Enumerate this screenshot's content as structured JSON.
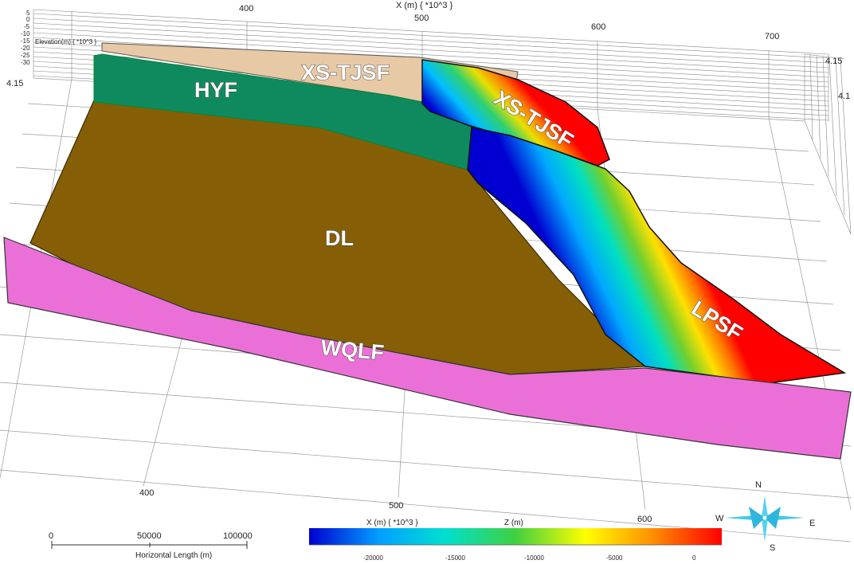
{
  "top_axis": {
    "title": "X (m) { *10^3 }",
    "ticks": [
      "400",
      "500",
      "600",
      "700"
    ]
  },
  "bottom_axis": {
    "ticks": [
      "400",
      "500",
      "600"
    ]
  },
  "elevation_axis": {
    "title": "Elevation(m) { *10^3 }",
    "ticks": [
      "5",
      "0",
      "-5",
      "-10",
      "-15",
      "-20",
      "-25",
      "-30"
    ]
  },
  "side_axis": {
    "ticks": [
      "4.15",
      "4.1"
    ],
    "left_tick": "4.15"
  },
  "regions": {
    "xs_tjsf_block": "XS-TJSF",
    "xs_tjsf_fault": "XS-TJSF",
    "hyf": "HYF",
    "dl": "DL",
    "lpsf": "LPSF",
    "wqlf": "WQLF"
  },
  "colors": {
    "xs_tjsf_block": "#e8c9a6",
    "hyf": "#0f8a5f",
    "dl": "#855e06",
    "wqlf": "#ea70d8"
  },
  "scale_bar": {
    "ticks": [
      "0",
      "50000",
      "100000"
    ],
    "label": "Horizontal Length (m)"
  },
  "color_legend": {
    "title_x": "X (m) { *10^3 }",
    "title_z": "Z (m)",
    "ticks": [
      "-20000",
      "-15000",
      "-10000",
      "-5000",
      "0"
    ],
    "gradient": [
      "#0000d0",
      "#00a0ff",
      "#00e0d0",
      "#40d040",
      "#ffff00",
      "#ff9000",
      "#ff0000"
    ]
  },
  "compass": {
    "north": "N",
    "south": "S",
    "east": "E",
    "west": "W",
    "icon": "compass-rose-icon"
  }
}
